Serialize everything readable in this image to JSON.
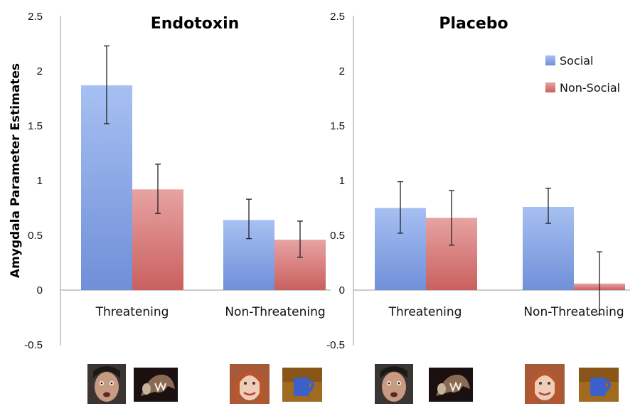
{
  "chart_data": {
    "type": "bar",
    "ylabel": "Amygdala Parameter Estimates",
    "ylim": [
      -0.5,
      2.5
    ],
    "yticks": [
      "2.5",
      "2",
      "1.5",
      "1",
      "0.5",
      "0",
      "-0.5"
    ],
    "legend": {
      "position": "top-right",
      "items": [
        "Social",
        "Non-Social"
      ]
    },
    "colors": {
      "Social": "#8faee8",
      "Non-Social": "#d9807f"
    },
    "panels": [
      {
        "title": "Endotoxin",
        "categories": [
          "Threatening",
          "Non-Threatening"
        ],
        "series": [
          {
            "name": "Social",
            "values": [
              1.87,
              0.64
            ],
            "err_low": [
              1.52,
              0.47
            ],
            "err_high": [
              2.23,
              0.83
            ]
          },
          {
            "name": "Non-Social",
            "values": [
              0.92,
              0.46
            ],
            "err_low": [
              0.7,
              0.3
            ],
            "err_high": [
              1.15,
              0.63
            ]
          }
        ]
      },
      {
        "title": "Placebo",
        "categories": [
          "Threatening",
          "Non-Threatening"
        ],
        "series": [
          {
            "name": "Social",
            "values": [
              0.75,
              0.76
            ],
            "err_low": [
              0.52,
              0.61
            ],
            "err_high": [
              0.99,
              0.93
            ]
          },
          {
            "name": "Non-Social",
            "values": [
              0.66,
              0.06
            ],
            "err_low": [
              0.41,
              -0.22
            ],
            "err_high": [
              0.91,
              0.35
            ]
          }
        ]
      }
    ]
  },
  "stimuli": {
    "icons": [
      "fearful-face-icon",
      "snarling-dog-icon",
      "smiling-face-icon",
      "blue-mug-icon",
      "fearful-face-icon",
      "snarling-dog-icon",
      "smiling-face-icon",
      "blue-mug-icon"
    ]
  }
}
